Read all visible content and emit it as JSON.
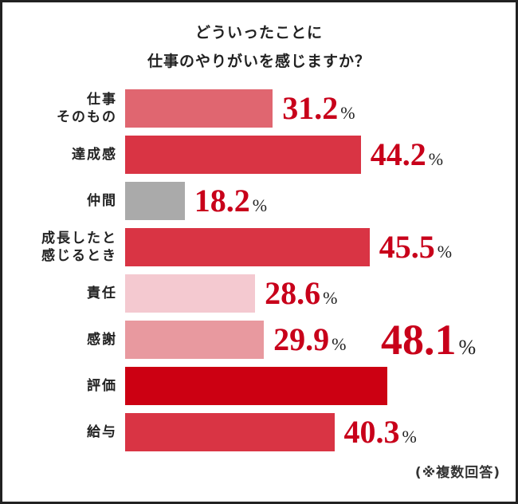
{
  "chart_data": {
    "type": "bar",
    "orientation": "horizontal",
    "title_lines": [
      "どういったことに",
      "仕事のやりがいを感じますか？"
    ],
    "categories": [
      [
        "仕事",
        "そのもの"
      ],
      [
        "達成感"
      ],
      [
        "仲間"
      ],
      [
        "成長したと",
        "感じるとき"
      ],
      [
        "責任"
      ],
      [
        "感謝"
      ],
      [
        "評価"
      ],
      [
        "給与"
      ]
    ],
    "values": [
      31.2,
      44.2,
      18.2,
      45.5,
      28.6,
      29.9,
      48.1,
      40.3
    ],
    "value_labels": [
      "31.2",
      "44.2",
      "18.2",
      "45.5",
      "28.6",
      "29.9",
      "48.1",
      "40.3"
    ],
    "unit": "%",
    "colors": [
      "#e06670",
      "#d93444",
      "#aaaaaa",
      "#d93444",
      "#f4c9d0",
      "#e8999f",
      "#cc0012",
      "#d93444"
    ],
    "highlight_index": 6,
    "note": "(※複数回答)",
    "grid": false
  }
}
